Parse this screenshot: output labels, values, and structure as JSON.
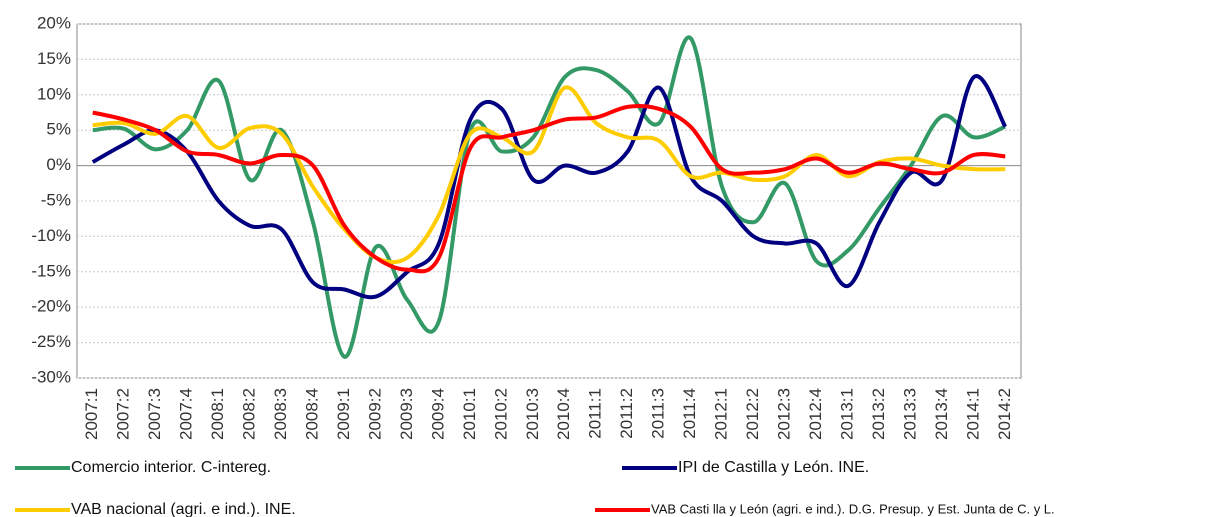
{
  "chart_data": {
    "type": "line",
    "categories": [
      "2007:1",
      "2007:2",
      "2007:3",
      "2007:4",
      "2008:1",
      "2008:2",
      "2008:3",
      "2008:4",
      "2009:1",
      "2009:2",
      "2009:3",
      "2009:4",
      "2010:1",
      "2010:2",
      "2010:3",
      "2010:4",
      "2011:1",
      "2011:2",
      "2011:3",
      "2011:4",
      "2012:1",
      "2012:2",
      "2012:3",
      "2012:4",
      "2013:1",
      "2013:2",
      "2013:3",
      "2013:4",
      "2014:1",
      "2014:2"
    ],
    "series": [
      {
        "name": "Comercio interior. C-intereg.",
        "color": "#339966",
        "values": [
          5,
          5.2,
          2.3,
          5,
          12,
          -2,
          5,
          -8,
          -27,
          -11.5,
          -19,
          -22,
          5,
          2,
          4,
          12.5,
          13.5,
          10.5,
          6,
          18,
          -3,
          -8,
          -2.5,
          -13.5,
          -12,
          -6,
          0,
          7,
          4,
          5.5
        ]
      },
      {
        "name": "IPI de Castilla y León. INE.",
        "color": "#000080",
        "values": [
          0.5,
          3,
          5,
          2,
          -5,
          -8.5,
          -9,
          -16.5,
          -17.5,
          -18.5,
          -15,
          -11,
          6.5,
          8,
          -2,
          0,
          -1,
          2,
          11,
          -1.5,
          -5,
          -10,
          -11,
          -11,
          -17,
          -8,
          -1,
          -2,
          12.5,
          5.5
        ]
      },
      {
        "name": "VAB nacional (agri. e ind.). INE.",
        "color": "#ffcc00",
        "values": [
          5.7,
          6,
          4.5,
          7,
          2.5,
          5.3,
          4.5,
          -3,
          -9,
          -13,
          -13,
          -7,
          4.5,
          4,
          2,
          11,
          6,
          4,
          3.5,
          -1.5,
          -1,
          -2,
          -1.5,
          1.5,
          -1.5,
          0.5,
          1,
          0,
          -0.5,
          -0.5
        ]
      },
      {
        "name": "VAB Casti lla y León (agri. e ind.). D.G. Presup. y Est. Junta de C. y L.",
        "color": "#ff0000",
        "values": [
          7.5,
          6.5,
          5,
          2,
          1.5,
          0.3,
          1.5,
          0,
          -8.5,
          -13,
          -14.7,
          -13,
          2.5,
          4,
          5,
          6.5,
          6.8,
          8.3,
          8,
          5.5,
          -0.5,
          -1,
          -0.5,
          1,
          -1,
          0.3,
          -0.5,
          -1,
          1.5,
          1.3
        ]
      }
    ],
    "ylim": [
      -30,
      20
    ],
    "yticks": [
      {
        "value": -30,
        "label": "-30%"
      },
      {
        "value": -25,
        "label": "-25%"
      },
      {
        "value": -20,
        "label": "-20%"
      },
      {
        "value": -15,
        "label": "-15%"
      },
      {
        "value": -10,
        "label": "-10%"
      },
      {
        "value": -5,
        "label": "-5%"
      },
      {
        "value": 0,
        "label": "0%"
      },
      {
        "value": 5,
        "label": "5%"
      },
      {
        "value": 10,
        "label": "10%"
      },
      {
        "value": 15,
        "label": "15%"
      },
      {
        "value": 20,
        "label": "20%"
      }
    ],
    "grid": true
  }
}
